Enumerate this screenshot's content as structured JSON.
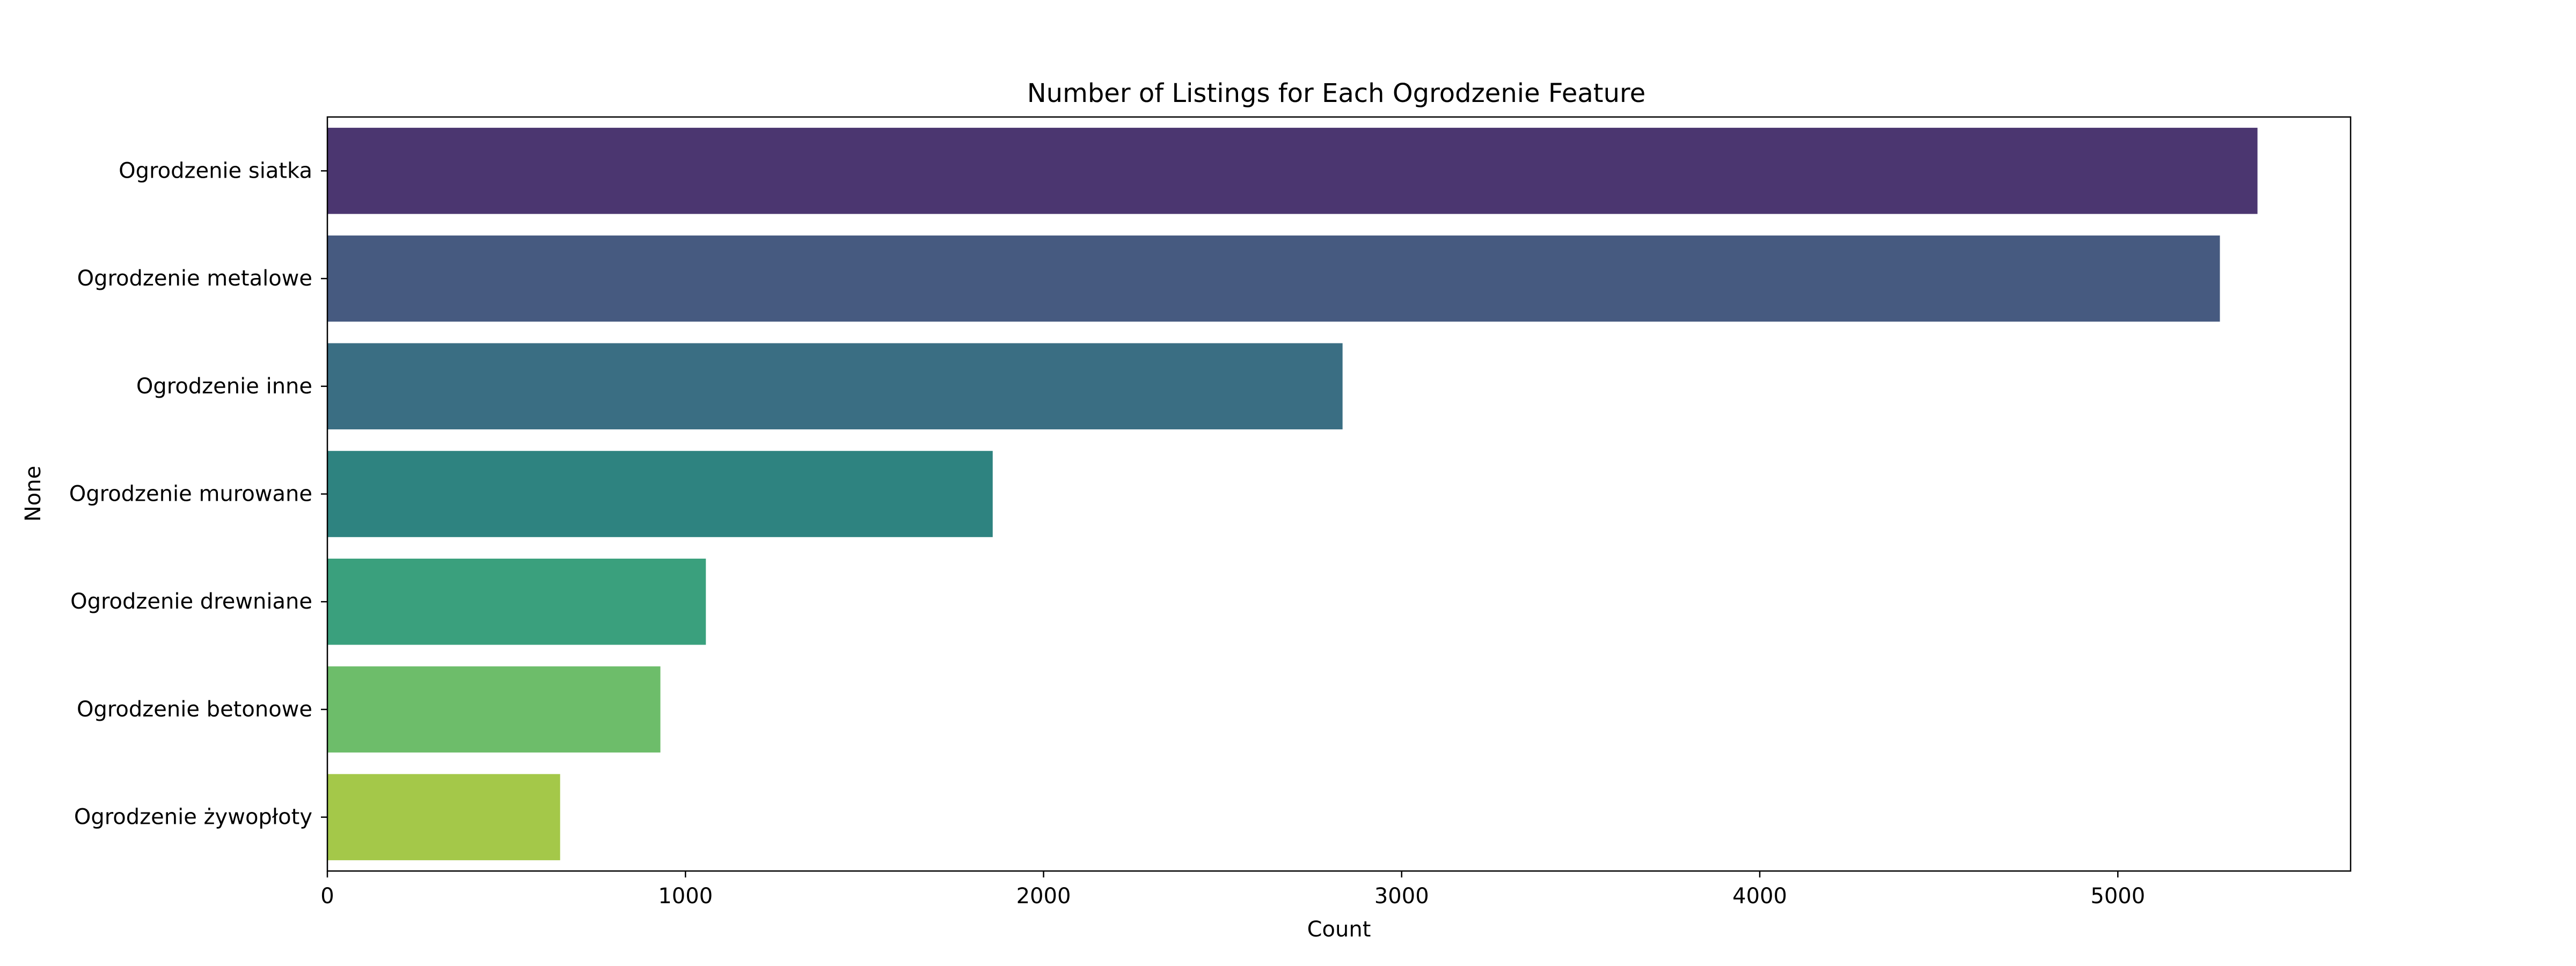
{
  "chart_data": {
    "type": "bar",
    "orientation": "horizontal",
    "title": "Number of Listings for Each Ogrodzenie Feature",
    "xlabel": "Count",
    "ylabel": "None",
    "categories": [
      "Ogrodzenie siatka",
      "Ogrodzenie metalowe",
      "Ogrodzenie inne",
      "Ogrodzenie murowane",
      "Ogrodzenie drewniane",
      "Ogrodzenie betonowe",
      "Ogrodzenie żywopłoty"
    ],
    "values": [
      5390,
      5285,
      2835,
      1858,
      1057,
      930,
      650
    ],
    "colors": [
      "#4b3670",
      "#465a80",
      "#3a6e83",
      "#2e8380",
      "#3aa07d",
      "#6dbd6a",
      "#a4c849"
    ],
    "xlim": [
      0,
      5650
    ],
    "xticks": [
      0,
      1000,
      2000,
      3000,
      4000,
      5000
    ],
    "grid": false,
    "legend": "none"
  }
}
